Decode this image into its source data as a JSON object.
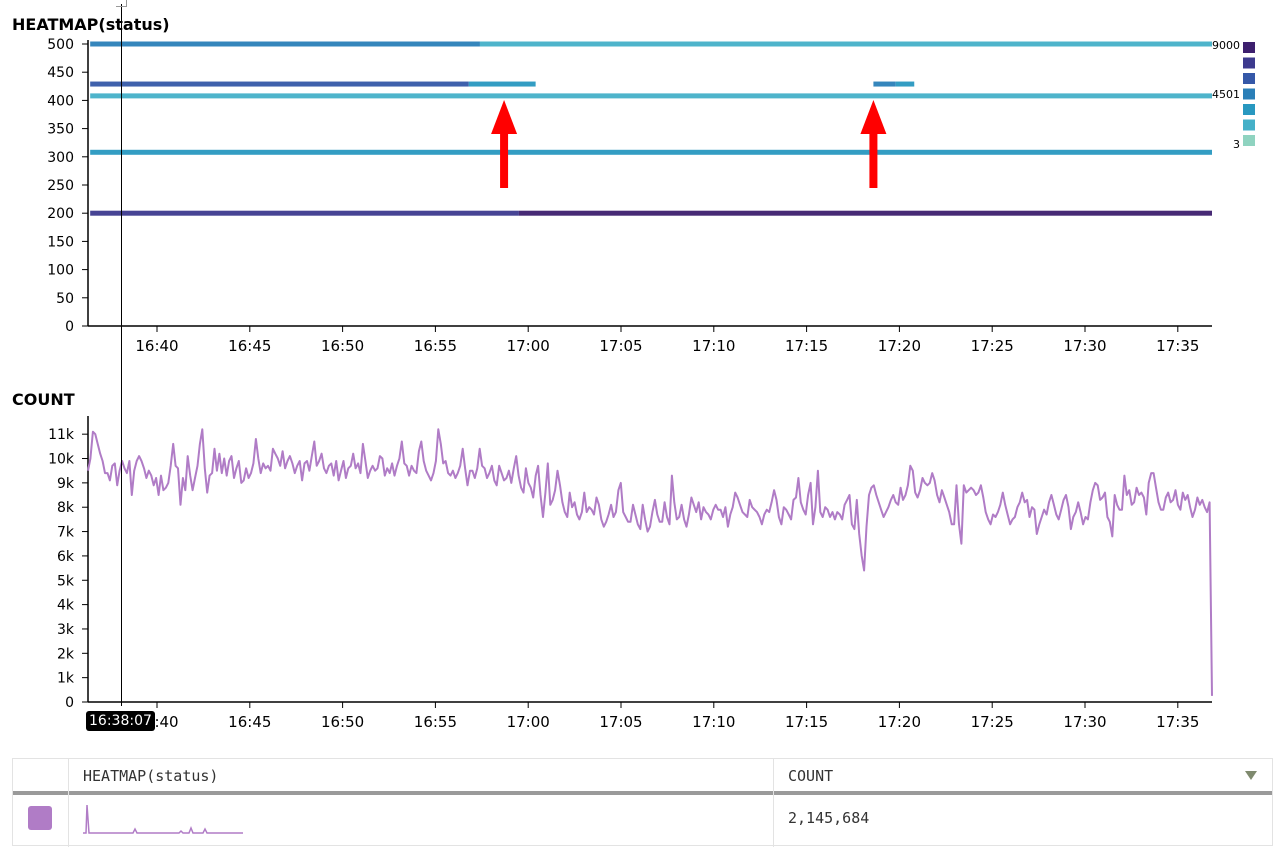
{
  "heatmap_panel": {
    "title": "HEATMAP(status)"
  },
  "count_panel": {
    "title": "COUNT"
  },
  "crosshair_time": "16:38:07",
  "colors": {
    "line": "#b07cc6",
    "arrow": "#ff0000",
    "axis": "#000000",
    "legend_scale": [
      "#3d1f6e",
      "#3d3a8e",
      "#3558a8",
      "#2a7fb8",
      "#2898c0",
      "#45b0c8",
      "#8fd3c0"
    ]
  },
  "chart_data": [
    {
      "type": "heatmap",
      "title": "HEATMAP(status)",
      "x_ticks": [
        "16:40",
        "16:45",
        "16:50",
        "16:55",
        "17:00",
        "17:05",
        "17:10",
        "17:15",
        "17:20",
        "17:25",
        "17:30",
        "17:35"
      ],
      "x_range_minutes": [
        -4,
        57
      ],
      "y_ticks": [
        0,
        50,
        100,
        150,
        200,
        250,
        300,
        350,
        400,
        450,
        500
      ],
      "ylim": [
        0,
        500
      ],
      "legend": {
        "max": "9000",
        "mid": "4501",
        "min": "3"
      },
      "rows": [
        {
          "status": 500,
          "segments": [
            {
              "from": -3.6,
              "to": 17.4,
              "level": 0.55
            },
            {
              "from": 17.4,
              "to": 57.0,
              "level": 0.2
            }
          ]
        },
        {
          "status": 429,
          "segments": [
            {
              "from": -3.6,
              "to": 16.8,
              "level": 0.6
            },
            {
              "from": 16.8,
              "to": 20.4,
              "level": 0.25
            },
            {
              "from": 38.6,
              "to": 39.8,
              "level": 0.45
            },
            {
              "from": 39.8,
              "to": 40.8,
              "level": 0.25
            }
          ]
        },
        {
          "status": 408,
          "segments": [
            {
              "from": -3.6,
              "to": 57.0,
              "level": 0.15
            }
          ]
        },
        {
          "status": 308,
          "segments": [
            {
              "from": -3.6,
              "to": 57.0,
              "level": 0.35
            }
          ]
        },
        {
          "status": 200,
          "segments": [
            {
              "from": -3.6,
              "to": 19.5,
              "level": 0.85
            },
            {
              "from": 19.5,
              "to": 57.0,
              "level": 0.97
            }
          ]
        }
      ],
      "annotations": [
        {
          "type": "arrow",
          "x": 18.7
        },
        {
          "type": "arrow",
          "x": 38.6
        }
      ]
    },
    {
      "type": "line",
      "title": "COUNT",
      "x_ticks": [
        "16:40",
        "16:45",
        "16:50",
        "16:55",
        "17:00",
        "17:05",
        "17:10",
        "17:15",
        "17:20",
        "17:25",
        "17:30",
        "17:35"
      ],
      "x_range_minutes": [
        -4,
        57
      ],
      "y_ticks": [
        "0",
        "1k",
        "2k",
        "3k",
        "4k",
        "5k",
        "6k",
        "7k",
        "8k",
        "9k",
        "10k",
        "11k"
      ],
      "ylim": [
        0,
        11500
      ],
      "series": [
        {
          "x_start_minute": -3.6,
          "x_step_minutes": 0.25,
          "values": [
            9500,
            10000,
            11100,
            11000,
            10600,
            10200,
            9900,
            9400,
            9400,
            9100,
            9700,
            9800,
            8900,
            9500,
            9900,
            9600,
            9400,
            9900,
            8500,
            9500,
            9900,
            10100,
            9900,
            9600,
            9200,
            9500,
            9300,
            8900,
            9200,
            8500,
            9300,
            8700,
            8800,
            9000,
            9700,
            10600,
            9700,
            9600,
            8100,
            9200,
            8700,
            10100,
            9300,
            8700,
            9200,
            9700,
            10600,
            11200,
            9600,
            8600,
            9300,
            9400,
            10400,
            9500,
            10200,
            9400,
            10000,
            9300,
            9900,
            10100,
            9200,
            9600,
            9900,
            9000,
            9100,
            9600,
            9200,
            9400,
            9800,
            10800,
            10000,
            9400,
            9800,
            9600,
            9700,
            9500,
            10400,
            10200,
            10000,
            9700,
            10300,
            9600,
            9900,
            10100,
            9800,
            9400,
            9700,
            9900,
            9100,
            9800,
            9900,
            9500,
            10100,
            10700,
            9700,
            9900,
            10200,
            9600,
            9400,
            9700,
            9800,
            9300,
            9900,
            9100,
            9500,
            9900,
            9200,
            9600,
            9700,
            10200,
            9600,
            9800,
            9400,
            10600,
            9900,
            9200,
            9500,
            9700,
            9500,
            9600,
            10100,
            10000,
            9300,
            9600,
            9400,
            9800,
            9300,
            9700,
            10000,
            10700,
            9800,
            9700,
            9300,
            9700,
            9500,
            9400,
            10300,
            10700,
            9900,
            9500,
            9300,
            9100,
            9400,
            9900,
            11200,
            10600,
            9800,
            9900,
            9400,
            9300,
            9500,
            9200,
            9400,
            9700,
            10400,
            9600,
            8900,
            9500,
            9500,
            9200,
            9600,
            10400,
            9700,
            9600,
            9200,
            9400,
            9700,
            9100,
            8900,
            9700,
            9400,
            9100,
            9200,
            9500,
            9000,
            9600,
            10100,
            9300,
            8800,
            8600,
            9600,
            9000,
            8800,
            8400,
            9300,
            9700,
            8500,
            7600,
            8600,
            9800,
            8100,
            8300,
            8700,
            9500,
            8900,
            8200,
            7800,
            7600,
            8600,
            8000,
            8200,
            7700,
            7500,
            7800,
            8600,
            7800,
            8000,
            7900,
            7700,
            8400,
            8100,
            7500,
            7200,
            7400,
            7700,
            8100,
            7600,
            7800,
            8700,
            9000,
            7800,
            7600,
            7400,
            7400,
            8100,
            7700,
            7300,
            7100,
            8100,
            7500,
            7000,
            7200,
            7800,
            8300,
            7700,
            7400,
            7400,
            8200,
            7600,
            7300,
            9300,
            8200,
            7500,
            7600,
            8100,
            7500,
            7200,
            7700,
            8400,
            8100,
            7800,
            8200,
            7500,
            8000,
            7800,
            7700,
            7500,
            7900,
            8100,
            7900,
            7900,
            7600,
            8000,
            7200,
            7700,
            8000,
            8600,
            8400,
            8100,
            7800,
            7700,
            7600,
            8300,
            8000,
            7900,
            7800,
            7600,
            7300,
            7700,
            7900,
            7800,
            8200,
            8700,
            8300,
            7600,
            7300,
            8000,
            7900,
            7700,
            7500,
            8300,
            8400,
            9200,
            8200,
            7900,
            7700,
            8500,
            9000,
            7300,
            8000,
            9500,
            7800,
            7600,
            8000,
            7900,
            7600,
            7800,
            7500,
            7800,
            7700,
            7500,
            8100,
            8300,
            8500,
            7300,
            7100,
            8300,
            6900,
            6000,
            5400,
            7200,
            8500,
            8800,
            8900,
            8500,
            8200,
            7900,
            7600,
            7800,
            8000,
            8300,
            8500,
            8200,
            8100,
            8800,
            8300,
            8500,
            8900,
            9700,
            9500,
            8600,
            8400,
            8700,
            9200,
            9000,
            8900,
            9000,
            9400,
            9100,
            8500,
            8200,
            8700,
            8400,
            8100,
            7800,
            7300,
            7300,
            8900,
            7300,
            6500,
            8900,
            8600,
            8700,
            8800,
            8700,
            8500,
            8600,
            8900,
            8400,
            7800,
            7500,
            7300,
            7700,
            7600,
            7800,
            8100,
            8600,
            8100,
            7700,
            7300,
            7500,
            7600,
            8000,
            8200,
            8600,
            8200,
            8300,
            7600,
            8000,
            7900,
            6900,
            7300,
            7600,
            7900,
            7700,
            8200,
            8500,
            8100,
            7700,
            7500,
            7900,
            8300,
            8500,
            8000,
            7100,
            7600,
            7800,
            8200,
            7800,
            7300,
            7600,
            7500,
            8200,
            8700,
            9000,
            8900,
            8300,
            8400,
            8600,
            7600,
            7400,
            6800,
            8500,
            8100,
            7900,
            7900,
            9300,
            8500,
            8700,
            8100,
            8200,
            8800,
            8500,
            8600,
            8400,
            7700,
            9000,
            9400,
            9400,
            8800,
            8200,
            7900,
            7900,
            8400,
            8600,
            8200,
            8300,
            8700,
            8100,
            7900,
            8600,
            8300,
            8500,
            8000,
            7600,
            7900,
            8400,
            8100,
            8300,
            8000,
            7800,
            8200,
            250
          ]
        }
      ]
    }
  ],
  "table": {
    "columns": [
      "HEATMAP(status)",
      "COUNT"
    ],
    "row": {
      "count": "2,145,684"
    }
  }
}
